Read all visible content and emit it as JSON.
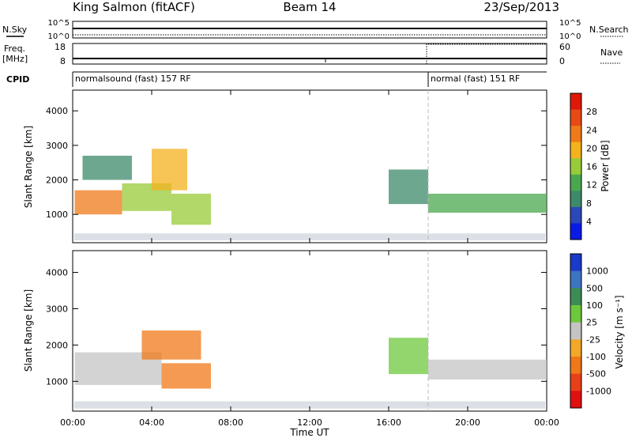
{
  "header": {
    "station": "King Salmon (fitACF)",
    "beam": "Beam 14",
    "date": "23/Sep/2013"
  },
  "strip_labels": {
    "nsky": "N.Sky",
    "nsearch": "N.Search",
    "freq_line1": "Freq.",
    "freq_line2": "[MHz]",
    "nave": "Nave",
    "cpid": "CPID",
    "noise_top_left": "10^5",
    "noise_bottom_left": "10^0",
    "noise_top_right": "10^5",
    "noise_bottom_right": "10^0",
    "freq_top": "18",
    "freq_bottom": "8",
    "nave_top": "60",
    "nave_bottom": "0"
  },
  "cpid_segments": [
    {
      "label": "normalsound (fast) 157 RF",
      "start_hour": 0
    },
    {
      "label": "normal (fast) 151 RF",
      "start_hour": 18
    }
  ],
  "chart_data": [
    {
      "type": "heatmap",
      "name": "power",
      "xlabel": "",
      "ylabel": "Slant Range [km]",
      "xlim": [
        0,
        24
      ],
      "ylim": [
        180,
        4600
      ],
      "yticks": [
        1000,
        2000,
        3000,
        4000
      ],
      "colorbar_label": "Power [dB]",
      "colorbar_ticks": [
        "4",
        "8",
        "12",
        "16",
        "20",
        "24",
        "28"
      ],
      "colorbar_colors": [
        "#0a1ae6",
        "#2b48b8",
        "#3d8a6a",
        "#49a84e",
        "#98cb38",
        "#f3b21e",
        "#f07a1a",
        "#e84a14",
        "#e01808"
      ],
      "echo_regions": [
        {
          "t0": 0.1,
          "t1": 2.5,
          "r0": 1000,
          "r1": 1700,
          "level": 20
        },
        {
          "t0": 2.5,
          "t1": 5.0,
          "r0": 1100,
          "r1": 1900,
          "level": 16
        },
        {
          "t0": 5.0,
          "t1": 7.0,
          "r0": 700,
          "r1": 1600,
          "level": 14
        },
        {
          "t0": 0.5,
          "t1": 3.0,
          "r0": 2000,
          "r1": 2700,
          "level": 10
        },
        {
          "t0": 4.0,
          "t1": 5.8,
          "r0": 1700,
          "r1": 2900,
          "level": 18
        },
        {
          "t0": 16.0,
          "t1": 18.0,
          "r0": 1300,
          "r1": 2300,
          "level": 10
        },
        {
          "t0": 18.0,
          "t1": 24.0,
          "r0": 1050,
          "r1": 1600,
          "level": 12
        }
      ]
    },
    {
      "type": "heatmap",
      "name": "velocity",
      "xlabel": "Time UT",
      "ylabel": "Slant Range [km]",
      "xlim": [
        0,
        24
      ],
      "ylim": [
        180,
        4600
      ],
      "xticks": [
        "00:00",
        "04:00",
        "08:00",
        "12:00",
        "16:00",
        "20:00",
        "00:00"
      ],
      "yticks": [
        1000,
        2000,
        3000,
        4000
      ],
      "colorbar_label": "Velocity [m s⁻¹]",
      "colorbar_ticks": [
        "1000",
        "500",
        "100",
        "25",
        "-25",
        "-100",
        "-500",
        "-1000"
      ],
      "colorbar_colors": [
        "#1a3ac8",
        "#3d74c0",
        "#3c8c56",
        "#6ec83c",
        "#c4c4c4",
        "#f2a828",
        "#f07818",
        "#e84018",
        "#e01010"
      ],
      "echo_regions": [
        {
          "t0": 0.1,
          "t1": 4.5,
          "r0": 900,
          "r1": 1800,
          "velocity": 0
        },
        {
          "t0": 3.5,
          "t1": 6.5,
          "r0": 1600,
          "r1": 2400,
          "velocity": -400
        },
        {
          "t0": 4.5,
          "t1": 7.0,
          "r0": 800,
          "r1": 1500,
          "velocity": -300
        },
        {
          "t0": 16.0,
          "t1": 18.0,
          "r0": 1200,
          "r1": 2200,
          "velocity": 80
        },
        {
          "t0": 18.0,
          "t1": 24.0,
          "r0": 1050,
          "r1": 1600,
          "velocity": 0
        }
      ]
    }
  ]
}
